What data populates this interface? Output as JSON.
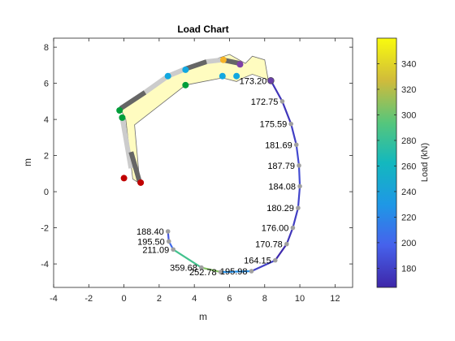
{
  "chart_data": {
    "type": "line",
    "title": "Load Chart",
    "xlabel": "m",
    "ylabel": "m",
    "xlim": [
      -4,
      13
    ],
    "ylim": [
      -5.3,
      8.5
    ],
    "xticks": [
      -4,
      -2,
      0,
      2,
      4,
      6,
      8,
      10,
      12
    ],
    "yticks": [
      -4,
      -2,
      0,
      2,
      4,
      6,
      8
    ],
    "xtick_labels": [
      "-4",
      "-2",
      "0",
      "2",
      "4",
      "6",
      "8",
      "10",
      "12"
    ],
    "ytick_labels": [
      "-4",
      "-2",
      "0",
      "2",
      "4",
      "6",
      "8"
    ],
    "colorbar": {
      "label": "Load (kN)",
      "range": [
        165,
        360
      ],
      "ticks": [
        180,
        200,
        220,
        240,
        260,
        280,
        300,
        320,
        340
      ],
      "tick_labels": [
        "180",
        "200",
        "220",
        "240",
        "260",
        "280",
        "300",
        "320",
        "340"
      ]
    },
    "crane_outline": [
      [
        0.1,
        4.0
      ],
      [
        0.5,
        0.7
      ],
      [
        0.9,
        0.45
      ],
      [
        0.6,
        3.7
      ],
      [
        3.5,
        5.9
      ],
      [
        5.6,
        6.3
      ],
      [
        6.4,
        6.1
      ],
      [
        6.8,
        6.3
      ],
      [
        7.3,
        6.5
      ],
      [
        8.2,
        6.2
      ],
      [
        8.0,
        7.3
      ],
      [
        7.3,
        7.5
      ],
      [
        6.9,
        7.1
      ],
      [
        6.0,
        7.6
      ],
      [
        3.5,
        6.8
      ],
      [
        2.5,
        6.4
      ],
      [
        -0.2,
        4.6
      ]
    ],
    "members": [
      {
        "from": [
          -0.1,
          4.1
        ],
        "to": [
          0.4,
          1.3
        ],
        "color": "#cccccc"
      },
      {
        "from": [
          0.4,
          2.2
        ],
        "to": [
          0.9,
          0.5
        ],
        "color": "#666666"
      },
      {
        "from": [
          -0.2,
          4.6
        ],
        "to": [
          1.2,
          5.5
        ],
        "color": "#666666"
      },
      {
        "from": [
          1.2,
          5.5
        ],
        "to": [
          2.5,
          6.4
        ],
        "color": "#cccccc"
      },
      {
        "from": [
          2.5,
          6.4
        ],
        "to": [
          3.5,
          6.8
        ],
        "color": "#cccccc"
      },
      {
        "from": [
          3.5,
          6.8
        ],
        "to": [
          4.7,
          7.2
        ],
        "color": "#666666"
      },
      {
        "from": [
          4.7,
          7.2
        ],
        "to": [
          5.6,
          7.3
        ],
        "color": "#cccccc"
      },
      {
        "from": [
          5.6,
          7.3
        ],
        "to": [
          6.6,
          7.1
        ],
        "color": "#666666"
      }
    ],
    "joints": [
      {
        "x": 0.0,
        "y": 0.75,
        "color": "#c00000"
      },
      {
        "x": 0.95,
        "y": 0.5,
        "color": "#c00000"
      },
      {
        "x": -0.25,
        "y": 4.5,
        "color": "#009e3a"
      },
      {
        "x": -0.1,
        "y": 4.1,
        "color": "#009e3a"
      },
      {
        "x": 3.5,
        "y": 5.9,
        "color": "#009e3a"
      },
      {
        "x": 2.5,
        "y": 6.4,
        "color": "#12a8e0"
      },
      {
        "x": 3.5,
        "y": 6.75,
        "color": "#12a8e0"
      },
      {
        "x": 5.6,
        "y": 6.4,
        "color": "#12a8e0"
      },
      {
        "x": 6.4,
        "y": 6.4,
        "color": "#12a8e0"
      },
      {
        "x": 5.65,
        "y": 7.3,
        "color": "#f5b325"
      },
      {
        "x": 6.6,
        "y": 7.05,
        "color": "#7e3fa6"
      },
      {
        "x": 8.35,
        "y": 6.15,
        "color": "#6a40a8"
      }
    ],
    "load_path": {
      "points": [
        {
          "x": 8.35,
          "y": 6.15,
          "load": 173.2,
          "label": "173.20"
        },
        {
          "x": 9.0,
          "y": 5.0,
          "load": 172.75,
          "label": "172.75"
        },
        {
          "x": 9.5,
          "y": 3.75,
          "load": 175.59,
          "label": "175.59"
        },
        {
          "x": 9.8,
          "y": 2.6,
          "load": 181.69,
          "label": "181.69"
        },
        {
          "x": 9.95,
          "y": 1.45,
          "load": 187.79,
          "label": "187.79"
        },
        {
          "x": 10.0,
          "y": 0.3,
          "load": 184.08,
          "label": "184.08"
        },
        {
          "x": 9.9,
          "y": -0.9,
          "load": 180.29,
          "label": "180.29"
        },
        {
          "x": 9.6,
          "y": -2.0,
          "load": 176.0,
          "label": "176.00"
        },
        {
          "x": 9.25,
          "y": -2.9,
          "load": 170.78,
          "label": "170.78"
        },
        {
          "x": 8.6,
          "y": -3.8,
          "load": 164.15,
          "label": "164.15"
        },
        {
          "x": 7.25,
          "y": -4.4,
          "load": 195.98,
          "label": "195.98"
        },
        {
          "x": 5.5,
          "y": -4.45,
          "load": 252.78,
          "label": "252.78"
        },
        {
          "x": 4.4,
          "y": -4.2,
          "load": 359.68,
          "label": "359.68"
        },
        {
          "x": 2.8,
          "y": -3.2,
          "load": 211.09,
          "label": "211.09"
        },
        {
          "x": 2.55,
          "y": -2.75,
          "load": 195.5,
          "label": "195.50"
        },
        {
          "x": 2.5,
          "y": -2.2,
          "load": 188.4,
          "label": "188.40"
        }
      ]
    }
  }
}
